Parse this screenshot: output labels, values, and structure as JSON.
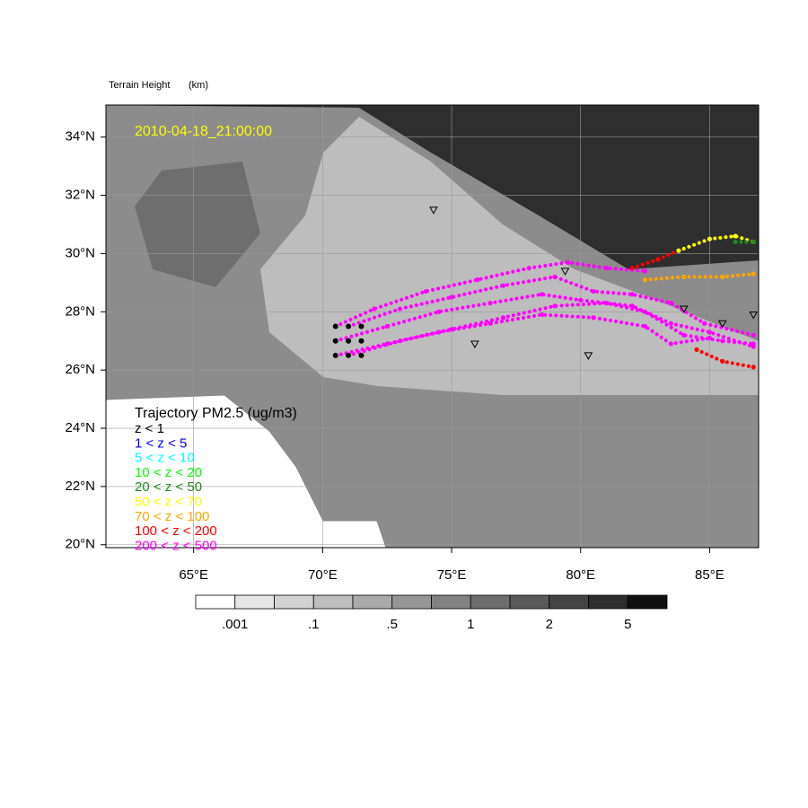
{
  "map": {
    "title": "Terrain Height",
    "units": "(km)",
    "timestamp": "2010-04-18_21:00:00",
    "xlim": [
      61.6,
      86.9
    ],
    "ylim": [
      19.9,
      35.1
    ],
    "xticks": [
      {
        "value": 65,
        "label": "65°E"
      },
      {
        "value": 70,
        "label": "70°E"
      },
      {
        "value": 75,
        "label": "75°E"
      },
      {
        "value": 80,
        "label": "80°E"
      },
      {
        "value": 85,
        "label": "85°E"
      }
    ],
    "yticks": [
      {
        "value": 20,
        "label": "20°N"
      },
      {
        "value": 22,
        "label": "22°N"
      },
      {
        "value": 24,
        "label": "24°N"
      },
      {
        "value": 26,
        "label": "26°N"
      },
      {
        "value": 28,
        "label": "28°N"
      },
      {
        "value": 30,
        "label": "30°N"
      },
      {
        "value": 32,
        "label": "32°N"
      },
      {
        "value": 34,
        "label": "34°N"
      }
    ],
    "grid": true,
    "legend": {
      "title": "Trajectory PM2.5 (ug/m3)",
      "entries": [
        {
          "label": "z < 1",
          "color": "#000000"
        },
        {
          "label": "1 < z < 5",
          "color": "#0000ff"
        },
        {
          "label": "5 < z < 10",
          "color": "#00ffff"
        },
        {
          "label": "10 < z < 20",
          "color": "#00ff00"
        },
        {
          "label": "20 < z < 50",
          "color": "#228b22"
        },
        {
          "label": "50 < z < 70",
          "color": "#ffff00"
        },
        {
          "label": "70 < z < 100",
          "color": "#ffa500"
        },
        {
          "label": "100 < z < 200",
          "color": "#ff0000"
        },
        {
          "label": "200 < z < 500",
          "color": "#ff00ff"
        }
      ]
    },
    "colorbar": {
      "colors": [
        "#ffffff",
        "#e6e6e6",
        "#d2d2d2",
        "#bebebe",
        "#aaaaaa",
        "#969696",
        "#828282",
        "#6e6e6e",
        "#5a5a5a",
        "#444444",
        "#2d2d2d",
        "#111111"
      ],
      "labels": [
        ".001",
        ".1",
        ".5",
        "1",
        "2",
        "5"
      ]
    },
    "start_points": {
      "lon": [
        70.5,
        71,
        71.5,
        70.5,
        71,
        71.5,
        70.5,
        71,
        71.5
      ],
      "lat": [
        27.5,
        27.5,
        27.5,
        27,
        27,
        27,
        26.5,
        26.5,
        26.5
      ]
    },
    "stations": {
      "lon": [
        74.3,
        75.9,
        80.3,
        79.4,
        84,
        85.5,
        86.7
      ],
      "lat": [
        31.5,
        26.9,
        26.5,
        29.4,
        28.1,
        27.6,
        27.9
      ]
    },
    "trajectories": [
      {
        "color": "#ff00ff",
        "lon": [
          70.5,
          72,
          74,
          76,
          78,
          79.5,
          81,
          82.5
        ],
        "lat": [
          27.5,
          28.1,
          28.7,
          29.1,
          29.5,
          29.7,
          29.5,
          29.4
        ]
      },
      {
        "color": "#ff00ff",
        "lon": [
          71,
          73,
          75,
          77,
          79,
          80.5,
          82,
          83.5,
          84.8,
          86.7
        ],
        "lat": [
          27.5,
          28.1,
          28.5,
          28.9,
          29.2,
          28.7,
          28.6,
          28.3,
          27.6,
          27.2
        ]
      },
      {
        "color": "#ff00ff",
        "lon": [
          70.5,
          72.5,
          74.5,
          76.5,
          78.5,
          80,
          82,
          83.5,
          85,
          86.7
        ],
        "lat": [
          27,
          27.5,
          28,
          28.3,
          28.6,
          28.4,
          28.2,
          27.6,
          27.3,
          26.8
        ]
      },
      {
        "color": "#ff00ff",
        "lon": [
          71,
          73,
          75,
          77,
          79,
          81,
          82.5,
          84,
          85.5,
          86.7
        ],
        "lat": [
          26.5,
          27,
          27.4,
          27.8,
          28.2,
          28.3,
          28,
          27.2,
          27,
          26.9
        ]
      },
      {
        "color": "#ff00ff",
        "lon": [
          70.5,
          72.5,
          74.5,
          76.5,
          78.5,
          80.5,
          82.5,
          83.5,
          85
        ],
        "lat": [
          26.5,
          26.9,
          27.3,
          27.6,
          27.9,
          27.8,
          27.5,
          26.9,
          27.1
        ]
      },
      {
        "color": "#ffa500",
        "lon": [
          82.5,
          84,
          85.5,
          86.7
        ],
        "lat": [
          29.1,
          29.2,
          29.2,
          29.3
        ]
      },
      {
        "color": "#ff0000",
        "lon": [
          82,
          83,
          83.8
        ],
        "lat": [
          29.5,
          29.8,
          30.1
        ]
      },
      {
        "color": "#ffff00",
        "lon": [
          83.8,
          85,
          86,
          86.7
        ],
        "lat": [
          30.1,
          30.5,
          30.6,
          30.4
        ]
      },
      {
        "color": "#228b22",
        "lon": [
          86,
          86.7
        ],
        "lat": [
          30.4,
          30.4
        ]
      },
      {
        "color": "#ff0000",
        "lon": [
          84.5,
          85.5,
          86.7
        ],
        "lat": [
          26.7,
          26.3,
          26.1
        ]
      }
    ]
  }
}
